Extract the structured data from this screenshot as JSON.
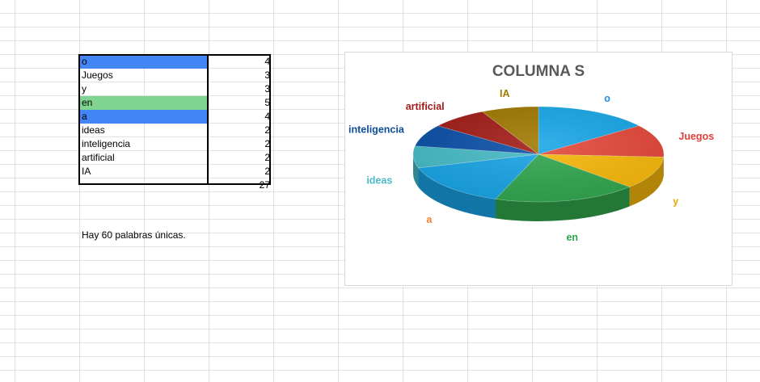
{
  "sheet": {
    "rows": [
      {
        "word": "o",
        "count": "4",
        "fill": "#4285f4"
      },
      {
        "word": "Juegos",
        "count": "3",
        "fill": null
      },
      {
        "word": "y",
        "count": "3",
        "fill": null
      },
      {
        "word": "en",
        "count": "5",
        "fill": "#7fd491"
      },
      {
        "word": "a",
        "count": "4",
        "fill": "#4285f4"
      },
      {
        "word": "ideas",
        "count": "2",
        "fill": null
      },
      {
        "word": "inteligencia",
        "count": "2",
        "fill": null
      },
      {
        "word": "artificial",
        "count": "2",
        "fill": null
      },
      {
        "word": "IA",
        "count": "2",
        "fill": null
      }
    ],
    "total": "27",
    "note": "Hay 60 palabras únicas."
  },
  "chart_data": {
    "type": "pie",
    "title": "COLUMNA S",
    "categories": [
      "o",
      "Juegos",
      "y",
      "en",
      "a",
      "ideas",
      "inteligencia",
      "artificial",
      "IA"
    ],
    "values": [
      4,
      3,
      3,
      5,
      4,
      2,
      2,
      2,
      2
    ],
    "colors": [
      "#17a6e6",
      "#e5473a",
      "#f7b80a",
      "#31a64e",
      "#18a4e5",
      "#45bac6",
      "#0a4ea6",
      "#a11b16",
      "#a07800"
    ],
    "label_colors": [
      "#1f8ce0",
      "#e0403a",
      "#e4ac00",
      "#2ea24c",
      "#f08030",
      "#4ab9c8",
      "#0d4d9a",
      "#a01c1c",
      "#a07a00"
    ],
    "legend": "none",
    "style": "3d"
  }
}
